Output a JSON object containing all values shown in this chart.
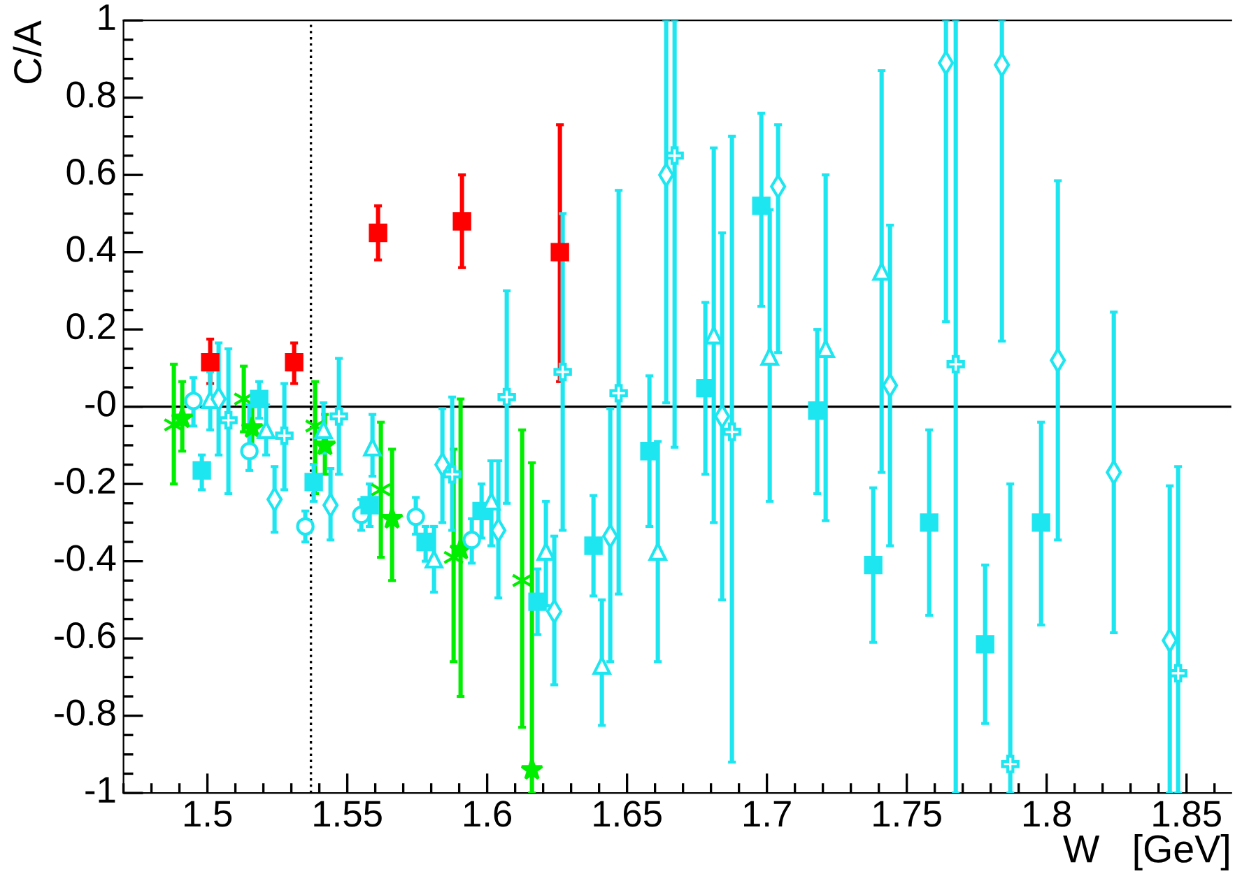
{
  "chart_data": {
    "type": "scatter",
    "xlabel": "W   [GeV]",
    "ylabel": "C/A",
    "xlim": [
      1.47,
      1.866
    ],
    "ylim": [
      -1,
      1
    ],
    "xticks": [
      1.5,
      1.55,
      1.6,
      1.65,
      1.7,
      1.75,
      1.8,
      1.85
    ],
    "yticks": [
      -1,
      -0.8,
      -0.6,
      -0.4,
      -0.2,
      {
        "value": 0,
        "label": "-0"
      },
      0.2,
      0.4,
      0.6,
      0.8,
      1
    ],
    "grid": false,
    "ref_lines": [
      {
        "axis": "y",
        "value": 0,
        "color": "#000000",
        "line_style": "solid"
      },
      {
        "axis": "x",
        "value": 1.537,
        "color": "#000000",
        "line_style": "dotted"
      }
    ],
    "series": [
      {
        "color": "#ff0000",
        "marker": "square",
        "x": [
          1.501,
          1.531,
          1.561,
          1.591,
          1.626
        ],
        "values": [
          0.115,
          0.115,
          0.45,
          0.48,
          0.4
        ],
        "errors": [
          [
            0.06,
            0.175
          ],
          [
            0.06,
            0.165
          ],
          [
            0.38,
            0.52
          ],
          [
            0.36,
            0.6
          ],
          [
            0.065,
            0.73
          ]
        ]
      },
      {
        "color": "#00ee00",
        "x": [
          1.488,
          1.513,
          1.5385,
          1.562,
          1.588,
          1.6125
        ],
        "values": [
          -0.047,
          0.02,
          -0.05,
          -0.215,
          -0.39,
          -0.45
        ],
        "errors": [
          [
            -0.2,
            0.11
          ],
          [
            -0.065,
            0.105
          ],
          [
            -0.225,
            0.065
          ],
          [
            -0.39,
            -0.04
          ],
          [
            -0.66,
            -0.11
          ],
          [
            -0.83,
            -0.06
          ]
        ]
      },
      {
        "color": "#00ee00",
        "marker": "star",
        "x": [
          1.491,
          1.516,
          1.542,
          1.566,
          1.5905,
          1.616
        ],
        "values": [
          -0.03,
          -0.055,
          -0.1,
          -0.29,
          -0.37,
          -0.94
        ],
        "errors": [
          [
            -0.115,
            0.065
          ],
          [
            -0.105,
            0.0
          ],
          [
            -0.175,
            -0.02
          ],
          [
            -0.45,
            -0.11
          ],
          [
            -0.75,
            0.02
          ],
          [
            -1,
            -0.145
          ]
        ]
      },
      {
        "color": "#1ee6f0",
        "marker": "circle",
        "x": [
          1.495,
          1.515,
          1.535,
          1.555,
          1.5745,
          1.5945
        ],
        "values": [
          0.015,
          -0.115,
          -0.31,
          -0.28,
          -0.285,
          -0.345
        ],
        "errors": [
          [
            -0.05,
            0.075
          ],
          [
            -0.165,
            0.005
          ],
          [
            -0.35,
            -0.27
          ],
          [
            -0.32,
            -0.24
          ],
          [
            -0.33,
            -0.235
          ],
          [
            -0.405,
            -0.29
          ]
        ]
      },
      {
        "color": "#1ee6f0",
        "marker": "square",
        "x": [
          1.498,
          1.5185,
          1.538,
          1.558,
          1.578,
          1.598,
          1.618,
          1.638,
          1.658,
          1.678,
          1.698,
          1.718,
          1.738,
          1.758,
          1.778,
          1.798
        ],
        "values": [
          -0.165,
          0.02,
          -0.195,
          -0.255,
          -0.35,
          -0.27,
          -0.505,
          -0.36,
          -0.115,
          0.048,
          0.52,
          -0.01,
          -0.41,
          -0.3,
          -0.615,
          -0.3
        ],
        "errors": [
          [
            -0.215,
            -0.125
          ],
          [
            -0.03,
            0.065
          ],
          [
            -0.245,
            -0.15
          ],
          [
            -0.31,
            -0.2
          ],
          [
            -0.4,
            -0.31
          ],
          [
            -0.34,
            -0.2
          ],
          [
            -0.59,
            -0.42
          ],
          [
            -0.49,
            -0.23
          ],
          [
            -0.31,
            0.08
          ],
          [
            -0.175,
            0.27
          ],
          [
            0.26,
            0.76
          ],
          [
            -0.225,
            0.2
          ],
          [
            -0.61,
            -0.21
          ],
          [
            -0.54,
            -0.06
          ],
          [
            -0.82,
            -0.41
          ],
          [
            -0.565,
            -0.04
          ]
        ]
      },
      {
        "color": "#1ee6f0",
        "marker": "triangle",
        "x": [
          1.501,
          1.521,
          1.5415,
          1.559,
          1.581,
          1.6015,
          1.621,
          1.641,
          1.661,
          1.681,
          1.701,
          1.721,
          1.741
        ],
        "values": [
          0.018,
          -0.06,
          -0.06,
          -0.105,
          -0.395,
          -0.245,
          -0.375,
          -0.67,
          -0.375,
          0.185,
          0.13,
          0.15,
          0.35
        ],
        "errors": [
          [
            -0.06,
            0.09
          ],
          [
            -0.125,
            0.005
          ],
          [
            -0.12,
            0.01
          ],
          [
            -0.18,
            -0.02
          ],
          [
            -0.48,
            -0.31
          ],
          [
            -0.36,
            -0.14
          ],
          [
            -0.515,
            -0.245
          ],
          [
            -0.825,
            -0.5
          ],
          [
            -0.66,
            -0.09
          ],
          [
            -0.3,
            0.67
          ],
          [
            -0.245,
            0.51
          ],
          [
            -0.295,
            0.6
          ],
          [
            -0.17,
            0.87
          ]
        ]
      },
      {
        "color": "#1ee6f0",
        "marker": "diamond",
        "x": [
          1.504,
          1.524,
          1.544,
          1.584,
          1.604,
          1.624,
          1.644,
          1.664,
          1.684,
          1.704,
          1.744,
          1.764,
          1.784,
          1.804,
          1.824,
          1.844
        ],
        "values": [
          0.02,
          -0.24,
          -0.255,
          -0.15,
          -0.32,
          -0.53,
          -0.335,
          0.6,
          -0.025,
          0.57,
          0.055,
          0.89,
          0.885,
          0.12,
          -0.17,
          -0.605
        ],
        "errors": [
          [
            -0.125,
            0.165
          ],
          [
            -0.325,
            -0.155
          ],
          [
            -0.345,
            -0.16
          ],
          [
            -0.3,
            -0.005
          ],
          [
            -0.495,
            -0.14
          ],
          [
            -0.72,
            -0.335
          ],
          [
            -0.66,
            -0.005
          ],
          [
            0.01,
            1
          ],
          [
            -0.5,
            0.45
          ],
          [
            0.14,
            0.73
          ],
          [
            -0.36,
            0.47
          ],
          [
            0.22,
            1
          ],
          [
            0.17,
            1
          ],
          [
            -0.345,
            0.585
          ],
          [
            -0.585,
            0.245
          ],
          [
            -1,
            -0.205
          ]
        ]
      },
      {
        "color": "#1ee6f0",
        "marker": "cross",
        "x": [
          1.5075,
          1.5275,
          1.547,
          1.5875,
          1.607,
          1.627,
          1.647,
          1.667,
          1.6875,
          1.7675,
          1.787,
          1.847
        ],
        "values": [
          -0.035,
          -0.075,
          -0.025,
          -0.175,
          0.025,
          0.09,
          0.035,
          0.65,
          -0.065,
          0.11,
          -0.925,
          -0.69
        ],
        "errors": [
          [
            -0.225,
            0.15
          ],
          [
            -0.215,
            0.06
          ],
          [
            -0.175,
            0.125
          ],
          [
            -0.32,
            0.025
          ],
          [
            -0.25,
            0.3
          ],
          [
            -0.32,
            0.5
          ],
          [
            -0.485,
            0.56
          ],
          [
            -0.105,
            1
          ],
          [
            -0.92,
            0.7
          ],
          [
            -1,
            1
          ],
          [
            -1,
            -0.2
          ],
          [
            -1,
            -0.155
          ]
        ]
      }
    ]
  }
}
